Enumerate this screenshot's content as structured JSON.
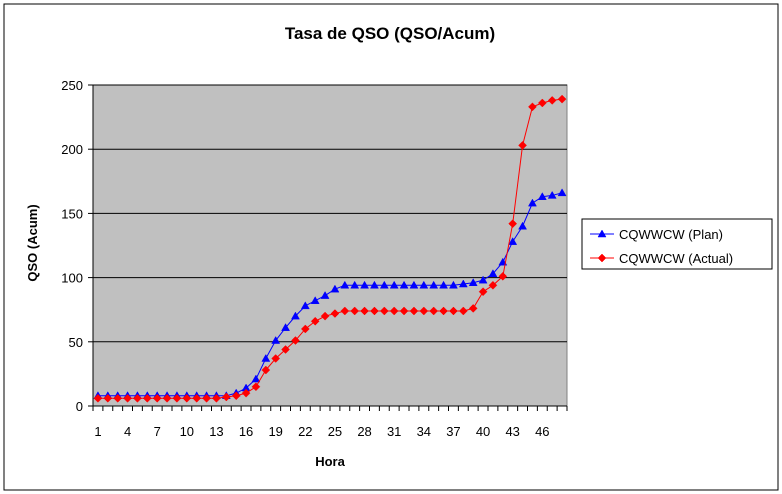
{
  "colors": {
    "background": "#ffffff",
    "plot_area": "#c0c0c0",
    "gridline": "#000000",
    "border": "#000000",
    "plan_series": "#0000ff",
    "actual_series": "#ff0000"
  },
  "chart_data": {
    "type": "line",
    "title": "Tasa de QSO (QSO/Acum)",
    "xlabel": "Hora",
    "ylabel": "QSO (Acum)",
    "ylim": [
      0,
      250
    ],
    "yticks": [
      0,
      50,
      100,
      150,
      200,
      250
    ],
    "x_tick_labels": [
      "1",
      "4",
      "7",
      "10",
      "13",
      "16",
      "19",
      "22",
      "25",
      "28",
      "31",
      "34",
      "37",
      "40",
      "43",
      "46"
    ],
    "x": [
      1,
      2,
      3,
      4,
      5,
      6,
      7,
      8,
      9,
      10,
      11,
      12,
      13,
      14,
      15,
      16,
      17,
      18,
      19,
      20,
      21,
      22,
      23,
      24,
      25,
      26,
      27,
      28,
      29,
      30,
      31,
      32,
      33,
      34,
      35,
      36,
      37,
      38,
      39,
      40,
      41,
      42,
      43,
      44,
      45,
      46,
      47,
      48
    ],
    "grid": "horizontal major",
    "legend_position": "right",
    "series": [
      {
        "name": "CQWWCW (Plan)",
        "marker": "triangle",
        "color": "#0000ff",
        "values": [
          8,
          8,
          8,
          8,
          8,
          8,
          8,
          8,
          8,
          8,
          8,
          8,
          8,
          8,
          10,
          14,
          21,
          37,
          51,
          61,
          70,
          78,
          82,
          86,
          91,
          94,
          94,
          94,
          94,
          94,
          94,
          94,
          94,
          94,
          94,
          94,
          94,
          95,
          96,
          98,
          103,
          112,
          128,
          140,
          158,
          163,
          164,
          166
        ]
      },
      {
        "name": "CQWWCW (Actual)",
        "marker": "diamond",
        "color": "#ff0000",
        "values": [
          6,
          6,
          6,
          6,
          6,
          6,
          6,
          6,
          6,
          6,
          6,
          6,
          6,
          7,
          8,
          10,
          15,
          28,
          37,
          44,
          51,
          60,
          66,
          70,
          72,
          74,
          74,
          74,
          74,
          74,
          74,
          74,
          74,
          74,
          74,
          74,
          74,
          74,
          76,
          89,
          94,
          101,
          142,
          203,
          233,
          236,
          238,
          239
        ]
      }
    ]
  }
}
